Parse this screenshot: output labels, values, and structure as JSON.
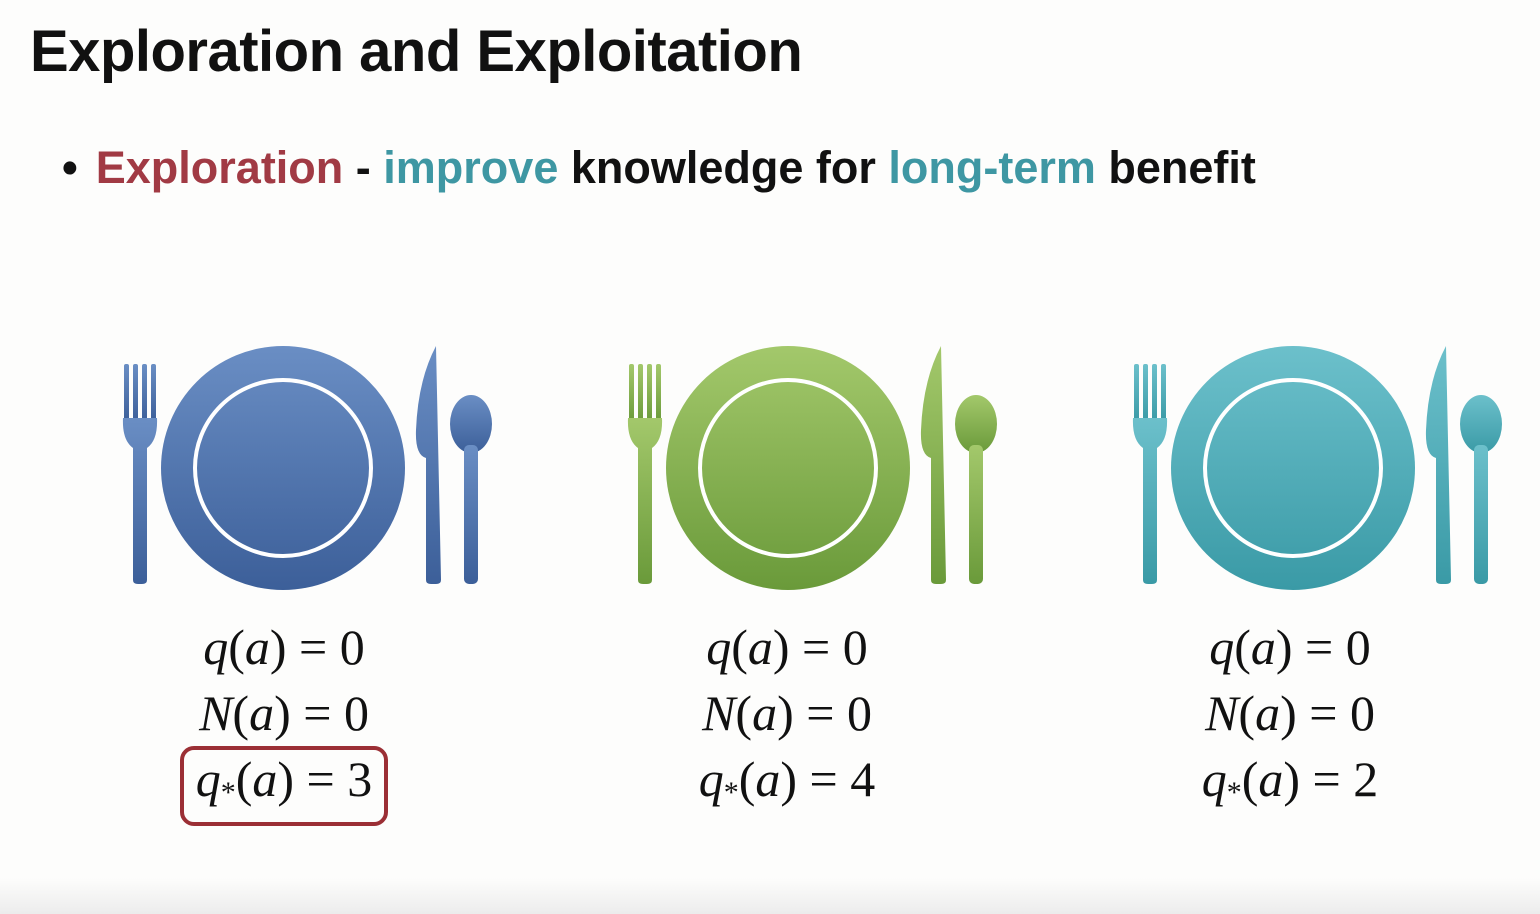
{
  "slide": {
    "title": "Exploration and Exploitation",
    "bullet": {
      "marker": "•",
      "segments": [
        {
          "text": "Exploration",
          "style": "explore"
        },
        {
          "text": " - ",
          "style": "plain"
        },
        {
          "text": "improve",
          "style": "teal"
        },
        {
          "text": " knowledge for ",
          "style": "plain"
        },
        {
          "text": "long-term",
          "style": "teal"
        },
        {
          "text": " benefit",
          "style": "plain"
        }
      ]
    }
  },
  "colors": {
    "explore": "#a13a44",
    "teal_text": "#3e97a3",
    "highlight_border": "#9b2f35"
  },
  "settings": [
    {
      "icon": "place-setting-icon",
      "color_top": "#6a8ec4",
      "color_bottom": "#3c5f99",
      "q": "q(a) = 0",
      "n": "N(a) = 0",
      "qstar": "q*(a) = 3",
      "q_value": "0",
      "n_value": "0",
      "qstar_value": "3",
      "highlighted": true
    },
    {
      "icon": "place-setting-icon",
      "color_top": "#a3c86b",
      "color_bottom": "#6a9a3a",
      "q": "q(a) = 0",
      "n": "N(a) = 0",
      "qstar": "q*(a) = 4",
      "q_value": "0",
      "n_value": "0",
      "qstar_value": "4",
      "highlighted": false
    },
    {
      "icon": "place-setting-icon",
      "color_top": "#6cc0cb",
      "color_bottom": "#3a9aa6",
      "q": "q(a) = 0",
      "n": "N(a) = 0",
      "qstar": "q*(a) = 2",
      "q_value": "0",
      "n_value": "0",
      "qstar_value": "2",
      "highlighted": false
    }
  ]
}
